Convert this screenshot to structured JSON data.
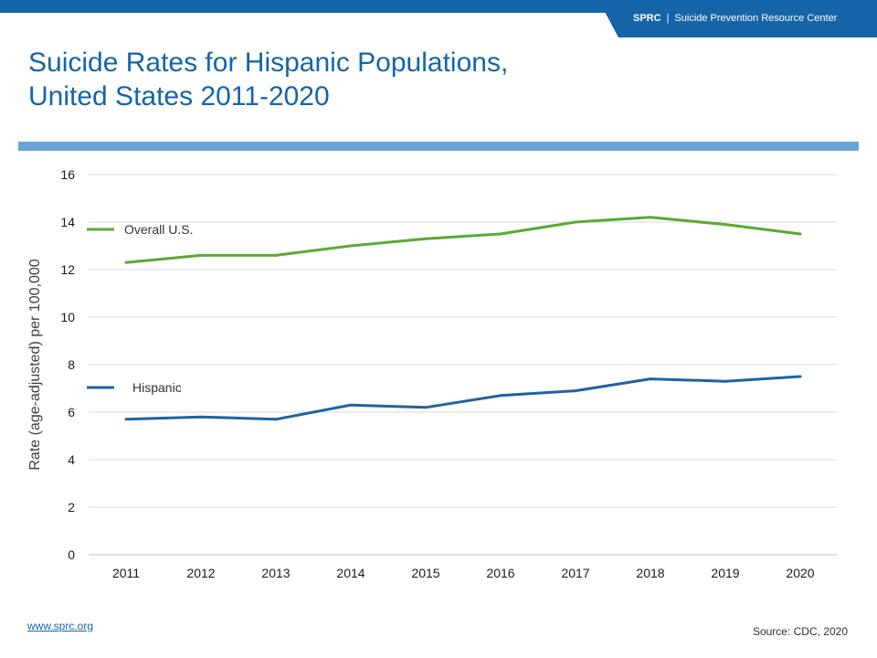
{
  "header": {
    "org_short": "SPRC",
    "separator": "|",
    "org_full": "Suicide Prevention Resource Center"
  },
  "title_line1": "Suicide Rates for Hispanic Populations,",
  "title_line2": "United States 2011-2020",
  "footer": {
    "link_text": "www.sprc.org",
    "source": "Source: CDC, 2020"
  },
  "colors": {
    "brand_blue": "#1565a8",
    "rule_blue": "#6aa3d5",
    "overall_green": "#5aaa32",
    "hispanic_blue": "#1f63a0"
  },
  "chart_data": {
    "type": "line",
    "title": "Suicide Rates for Hispanic Populations, United States 2011-2020",
    "xlabel": "",
    "ylabel": "Rate (age-adjusted) per 100,000",
    "ylim": [
      0,
      16
    ],
    "yticks": [
      0,
      2,
      4,
      6,
      8,
      10,
      12,
      14,
      16
    ],
    "grid": true,
    "categories": [
      "2011",
      "2012",
      "2013",
      "2014",
      "2015",
      "2016",
      "2017",
      "2018",
      "2019",
      "2020"
    ],
    "series": [
      {
        "name": "Overall U.S.",
        "color": "#5aaa32",
        "values": [
          12.3,
          12.6,
          12.6,
          13.0,
          13.3,
          13.5,
          14.0,
          14.2,
          13.9,
          13.5
        ]
      },
      {
        "name": "Hispanic",
        "color": "#1f63a0",
        "values": [
          5.7,
          5.8,
          5.7,
          6.3,
          6.2,
          6.7,
          6.9,
          7.4,
          7.3,
          7.5
        ]
      }
    ]
  }
}
